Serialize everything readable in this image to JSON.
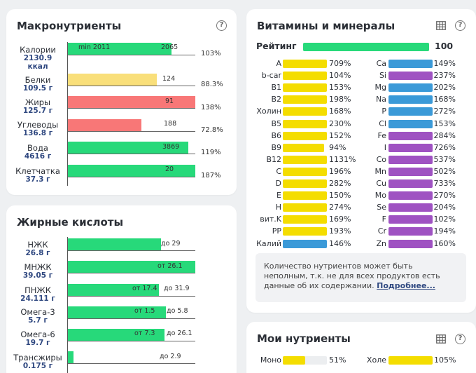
{
  "macro": {
    "title": "Макронутриенты",
    "rows": [
      {
        "name": "Калории",
        "value": "2130.9",
        "value2": "ккал",
        "mid": "min 2011",
        "num": "2065",
        "pct": "103%"
      },
      {
        "name": "Белки",
        "value": "109.5 г",
        "num": "124",
        "pct": "88.3%"
      },
      {
        "name": "Жиры",
        "value": "125.7 г",
        "num": "91",
        "pct": "138%"
      },
      {
        "name": "Углеводы",
        "value": "136.8 г",
        "num": "188",
        "pct": "72.8%"
      },
      {
        "name": "Вода",
        "value": "4616 г",
        "num": "3869",
        "pct": "119%"
      },
      {
        "name": "Клетчатка",
        "value": "37.3 г",
        "num": "20",
        "pct": "187%"
      }
    ]
  },
  "fatty": {
    "title": "Жирные кислоты",
    "rows": [
      {
        "name": "НЖК",
        "value": "26.8 г",
        "from": "",
        "to": "до 29"
      },
      {
        "name": "МНЖК",
        "value": "39.05 г",
        "from": "от 26.1",
        "to": ""
      },
      {
        "name": "ПНЖК",
        "value": "24.111 г",
        "from": "от 17.4",
        "to": "до 31.9"
      },
      {
        "name": "Омега-3",
        "value": "5.7 г",
        "from": "от 1.5",
        "to": "до 5.8"
      },
      {
        "name": "Омега-6",
        "value": "19.7 г",
        "from": "от 7.3",
        "to": "до 26.1"
      },
      {
        "name": "Трансжиры",
        "value": "0.175 г",
        "from": "",
        "to": "до 2.9"
      }
    ]
  },
  "vitamins": {
    "title": "Витамины и минералы",
    "rating_label": "Рейтинг",
    "rating_value": "100",
    "left": [
      {
        "n": "A",
        "p": "709%",
        "c": "y"
      },
      {
        "n": "b-car",
        "p": "104%",
        "c": "y"
      },
      {
        "n": "B1",
        "p": "153%",
        "c": "y"
      },
      {
        "n": "B2",
        "p": "198%",
        "c": "y"
      },
      {
        "n": "Холин",
        "p": "168%",
        "c": "y"
      },
      {
        "n": "B5",
        "p": "230%",
        "c": "y"
      },
      {
        "n": "B6",
        "p": "152%",
        "c": "y"
      },
      {
        "n": "B9",
        "p": "94%",
        "c": "y"
      },
      {
        "n": "B12",
        "p": "1131%",
        "c": "y"
      },
      {
        "n": "C",
        "p": "196%",
        "c": "y"
      },
      {
        "n": "D",
        "p": "282%",
        "c": "y"
      },
      {
        "n": "E",
        "p": "150%",
        "c": "y"
      },
      {
        "n": "H",
        "p": "274%",
        "c": "y"
      },
      {
        "n": "вит.K",
        "p": "169%",
        "c": "y"
      },
      {
        "n": "PP",
        "p": "193%",
        "c": "y"
      },
      {
        "n": "Калий",
        "p": "146%",
        "c": "b"
      }
    ],
    "right": [
      {
        "n": "Ca",
        "p": "149%",
        "c": "b"
      },
      {
        "n": "Si",
        "p": "237%",
        "c": "u"
      },
      {
        "n": "Mg",
        "p": "202%",
        "c": "b"
      },
      {
        "n": "Na",
        "p": "168%",
        "c": "b"
      },
      {
        "n": "P",
        "p": "272%",
        "c": "b"
      },
      {
        "n": "Cl",
        "p": "153%",
        "c": "b"
      },
      {
        "n": "Fe",
        "p": "284%",
        "c": "u"
      },
      {
        "n": "I",
        "p": "726%",
        "c": "u"
      },
      {
        "n": "Co",
        "p": "537%",
        "c": "u"
      },
      {
        "n": "Mn",
        "p": "502%",
        "c": "u"
      },
      {
        "n": "Cu",
        "p": "733%",
        "c": "u"
      },
      {
        "n": "Mo",
        "p": "270%",
        "c": "u"
      },
      {
        "n": "Se",
        "p": "204%",
        "c": "u"
      },
      {
        "n": "F",
        "p": "102%",
        "c": "u"
      },
      {
        "n": "Cr",
        "p": "194%",
        "c": "u"
      },
      {
        "n": "Zn",
        "p": "160%",
        "c": "u"
      }
    ],
    "note": "Количество нутриентов может быть неполным, т.к. не для всех продуктов есть данные об их содержании.",
    "note_link": "Подробнее..."
  },
  "my": {
    "title": "Мои нутриенты",
    "items": [
      {
        "n": "Моно",
        "p": "51%"
      },
      {
        "n": "Холе",
        "p": "105%"
      }
    ]
  },
  "colors": {
    "green": "#27d97a",
    "yellow": "#f9df7a",
    "red": "#f87777",
    "vit_yellow": "#f4dd00",
    "vit_blue": "#3b9ad8",
    "vit_purple": "#9f52c2"
  }
}
